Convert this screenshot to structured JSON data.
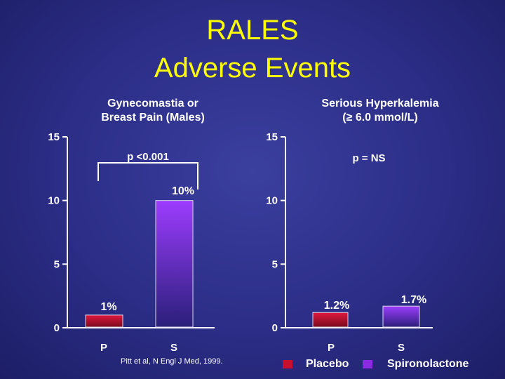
{
  "title_line1": "RALES",
  "title_line2": "Adverse Events",
  "citation": "Pitt et al, N Engl J Med, 1999.",
  "legend": {
    "items": [
      {
        "label": "Placebo",
        "color": "#c8102e"
      },
      {
        "label": "Spironolactone",
        "color": "#8a2be2"
      }
    ]
  },
  "chart_data": [
    {
      "type": "bar",
      "title_line1": "Gynecomastia or",
      "title_line2": "Breast Pain (Males)",
      "categories": [
        "P",
        "S"
      ],
      "values": [
        1,
        10
      ],
      "data_labels": [
        "1%",
        "10%"
      ],
      "ylim": [
        0,
        15
      ],
      "yticks": [
        "0",
        "5",
        "10",
        "15"
      ],
      "pvalue": "p <0.001",
      "colors": [
        "#c8102e",
        "#8a2be2"
      ]
    },
    {
      "type": "bar",
      "title_line1": "Serious Hyperkalemia",
      "title_line2": "(≥ 6.0 mmol/L)",
      "categories": [
        "P",
        "S"
      ],
      "values": [
        1.2,
        1.7
      ],
      "data_labels": [
        "1.2%",
        "1.7%"
      ],
      "ylim": [
        0,
        15
      ],
      "yticks": [
        "0",
        "5",
        "10",
        "15"
      ],
      "pvalue": "p = NS",
      "colors": [
        "#c8102e",
        "#8a2be2"
      ]
    }
  ]
}
